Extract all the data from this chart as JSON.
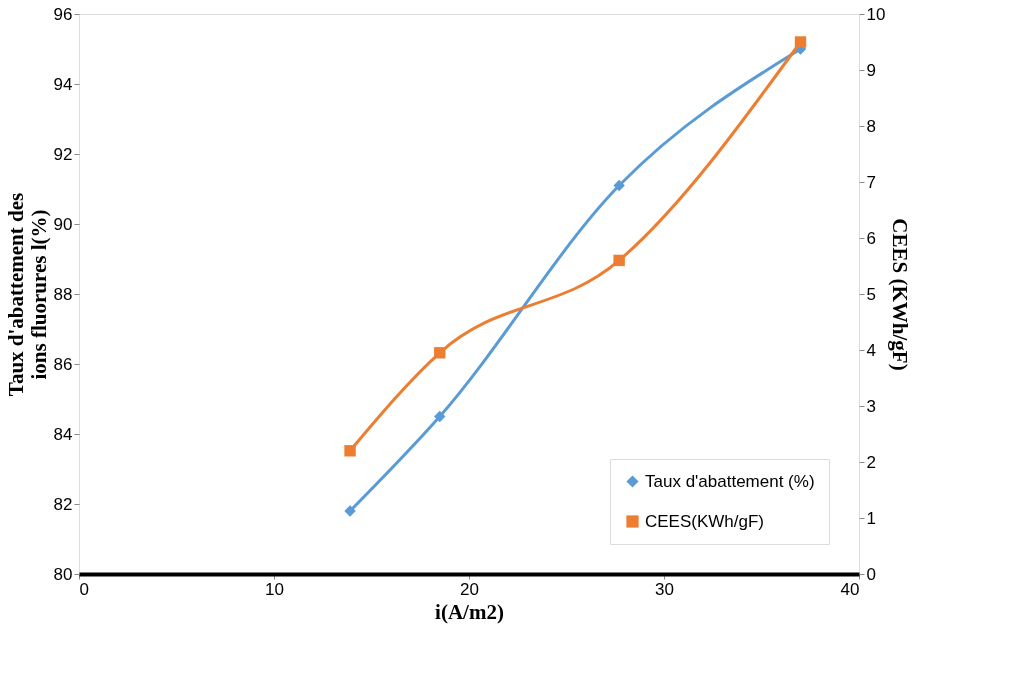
{
  "chart_data": {
    "type": "line",
    "xlabel": "i(A/m2)",
    "ylabel": "Taux d'abattement des ions fluorures l(%)",
    "y2label": "CEES (KWh/gF)",
    "xlim": [
      0,
      40
    ],
    "xticks": [
      0,
      10,
      20,
      30,
      40
    ],
    "ylim": [
      80,
      96
    ],
    "yticks": [
      80,
      82,
      84,
      86,
      88,
      90,
      92,
      94,
      96
    ],
    "y2lim": [
      0,
      10
    ],
    "y2ticks": [
      0,
      1,
      2,
      3,
      4,
      5,
      6,
      7,
      8,
      9,
      10
    ],
    "x": [
      13.9,
      18.5,
      27.7,
      37
    ],
    "series": [
      {
        "name": "Taux d'abattement (%)",
        "color": "#5b9bd5",
        "values": [
          81.8,
          84.5,
          91.1,
          95
        ],
        "marker": "diamond"
      },
      {
        "name": "CEES(KWh/gF)",
        "color": "#ed7d31",
        "values": [
          2.2,
          3.95,
          5.6,
          9.5
        ],
        "marker": "square",
        "axis": "y2"
      }
    ],
    "legend": "bottom right",
    "grid": false
  }
}
